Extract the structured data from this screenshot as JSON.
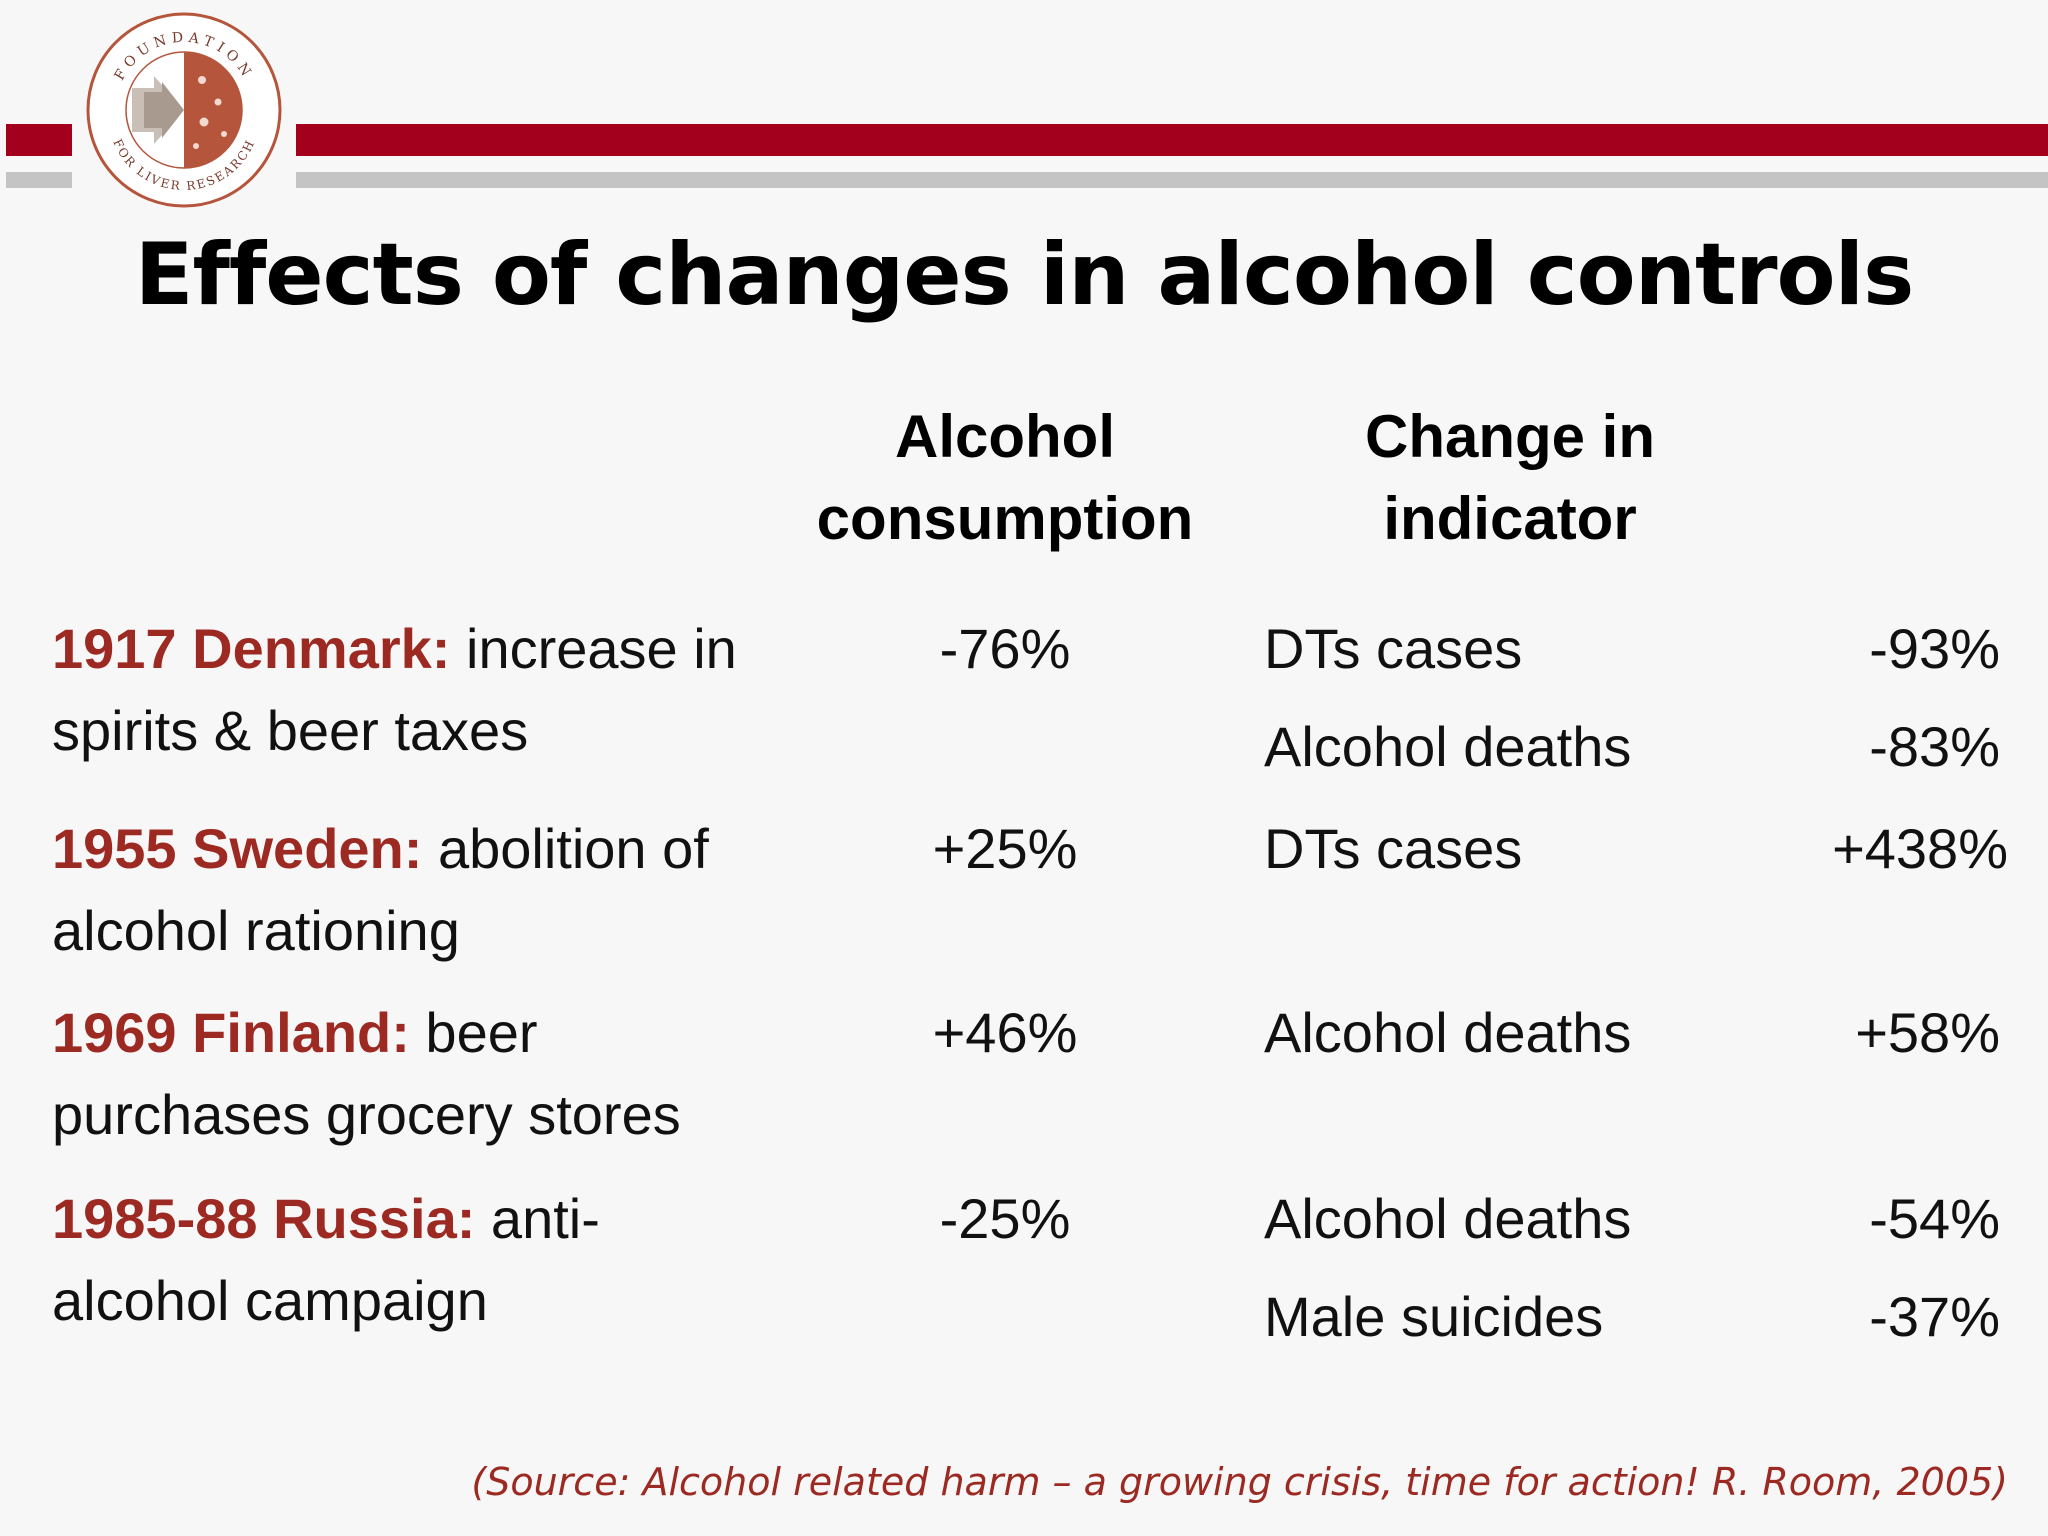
{
  "logo": {
    "ring_text_top": "FOUNDATION",
    "ring_text_bottom": "FOR LIVER RESEARCH"
  },
  "title": "Effects of changes in alcohol controls",
  "headers": {
    "consumption": [
      "Alcohol",
      "consumption"
    ],
    "indicator": [
      "Change in",
      "indicator"
    ]
  },
  "rows": [
    {
      "event_head": "1917 Denmark:",
      "event_text": " increase in spirits & beer taxes",
      "consumption": "-76%",
      "indicators": [
        {
          "name": "DTs cases",
          "change": "-93%"
        },
        {
          "name": "Alcohol deaths",
          "change": "-83%"
        }
      ]
    },
    {
      "event_head": "1955 Sweden:",
      "event_text": " abolition of alcohol rationing",
      "consumption": "+25%",
      "indicators": [
        {
          "name": "DTs cases",
          "change": "+438%"
        }
      ]
    },
    {
      "event_head": "1969 Finland:",
      "event_text": " beer purchases grocery stores",
      "consumption": "+46%",
      "indicators": [
        {
          "name": "Alcohol deaths",
          "change": "+58%"
        }
      ]
    },
    {
      "event_head": "1985-88 Russia:",
      "event_text": " anti-alcohol campaign",
      "consumption": "-25%",
      "indicators": [
        {
          "name": "Alcohol deaths",
          "change": "-54%"
        },
        {
          "name": "Male suicides",
          "change": "-37%"
        }
      ]
    }
  ],
  "source": "(Source: Alcohol related harm – a growing crisis, time for action! R. Room, 2005)",
  "colors": {
    "brand_red": "#a3001e",
    "accent_text": "#9c2a22",
    "rule_grey": "#c4c4c4"
  }
}
